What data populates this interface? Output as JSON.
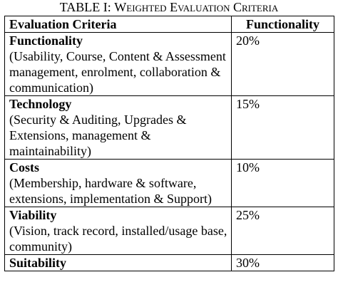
{
  "caption": {
    "prefix": "TABLE I:",
    "title": "Weighted Evaluation Criteria"
  },
  "table": {
    "headers": [
      "Evaluation Criteria",
      "Functionality"
    ],
    "rows": [
      {
        "name": "Functionality",
        "description": "(Usability, Course, Content & Assessment management, enrolment, collaboration & communication)",
        "weight": "20%"
      },
      {
        "name": "Technology",
        "description": "(Security & Auditing, Upgrades & Extensions, management & maintainability)",
        "weight": "15%"
      },
      {
        "name": "Costs",
        "description": "(Membership, hardware & software, extensions, implementation & Support)",
        "weight": "10%"
      },
      {
        "name": "Viability",
        "description": "(Vision, track record, installed/usage base, community)",
        "weight": "25%"
      },
      {
        "name": "Suitability",
        "description": "",
        "weight": "30%"
      }
    ]
  }
}
